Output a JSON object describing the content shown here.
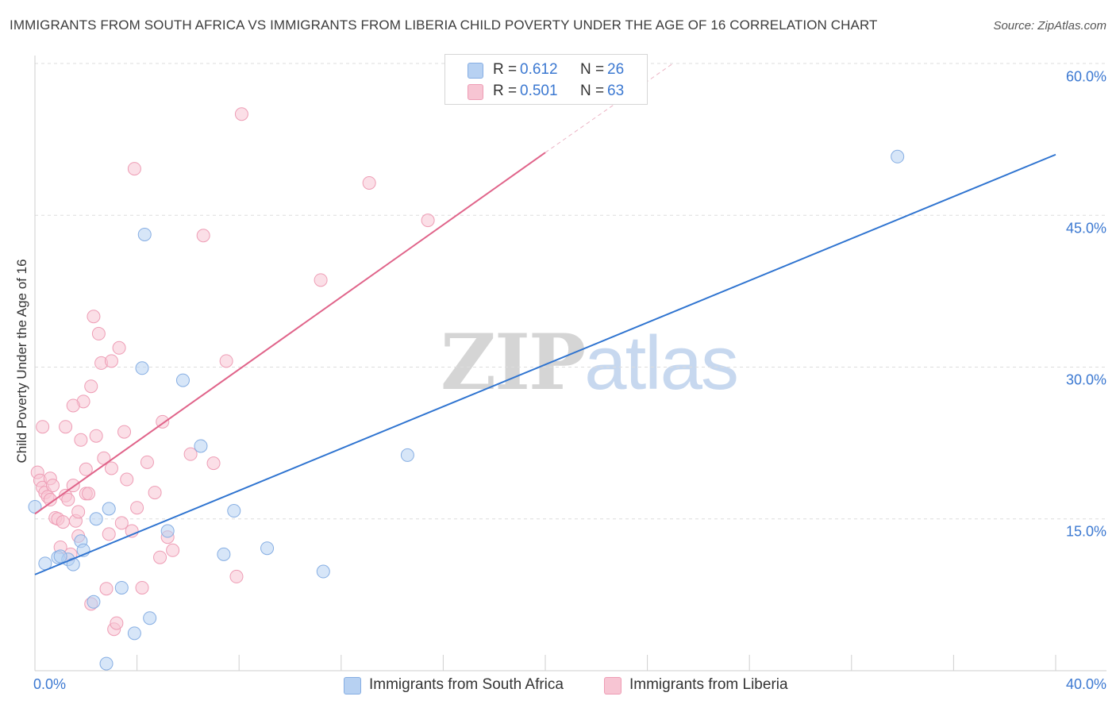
{
  "title": "IMMIGRANTS FROM SOUTH AFRICA VS IMMIGRANTS FROM LIBERIA CHILD POVERTY UNDER THE AGE OF 16 CORRELATION CHART",
  "source": "Source: ZipAtlas.com",
  "watermark": {
    "zip": "ZIP",
    "atlas": "atlas"
  },
  "legend": {
    "rows": [
      {
        "r_label": "R =",
        "r_value": "0.612",
        "n_label": "N =",
        "n_value": "26"
      },
      {
        "r_label": "R =",
        "r_value": "0.501",
        "n_label": "N =",
        "n_value": "63"
      }
    ]
  },
  "colors": {
    "south_africa_fill": "#b7d1f2",
    "south_africa_stroke": "#86aee3",
    "south_africa_line": "#2f74d0",
    "liberia_fill": "#f7c5d3",
    "liberia_stroke": "#ee9db5",
    "liberia_line": "#e0648a",
    "tick_text": "#3b78d1",
    "grid": "#dddddd"
  },
  "chart_data": {
    "type": "scatter",
    "title": "IMMIGRANTS FROM SOUTH AFRICA VS IMMIGRANTS FROM LIBERIA CHILD POVERTY UNDER THE AGE OF 16 CORRELATION CHART",
    "xlabel": "",
    "ylabel": "Child Poverty Under the Age of 16",
    "xlim": [
      0,
      40
    ],
    "ylim": [
      0,
      60
    ],
    "x_tick_labels": [
      "0.0%",
      "40.0%"
    ],
    "y_ticks": [
      15,
      30,
      45,
      60
    ],
    "y_tick_labels": [
      "15.0%",
      "30.0%",
      "45.0%",
      "60.0%"
    ],
    "grid": true,
    "legend_position": "top-center",
    "series": [
      {
        "name": "Immigrants from South Africa",
        "r": 0.612,
        "n": 26,
        "trend": {
          "x": [
            0,
            40
          ],
          "y": [
            9.5,
            51.0
          ]
        },
        "points": [
          [
            0.0,
            16.2
          ],
          [
            0.4,
            10.6
          ],
          [
            0.9,
            11.2
          ],
          [
            1.3,
            11.0
          ],
          [
            1.5,
            10.5
          ],
          [
            1.8,
            12.8
          ],
          [
            1.9,
            11.9
          ],
          [
            2.3,
            6.8
          ],
          [
            2.4,
            15.0
          ],
          [
            2.8,
            0.7
          ],
          [
            2.9,
            16.0
          ],
          [
            3.4,
            8.2
          ],
          [
            3.9,
            3.7
          ],
          [
            4.2,
            29.9
          ],
          [
            4.3,
            43.1
          ],
          [
            4.5,
            5.2
          ],
          [
            5.2,
            13.8
          ],
          [
            5.8,
            28.7
          ],
          [
            6.5,
            22.2
          ],
          [
            7.4,
            11.5
          ],
          [
            7.8,
            15.8
          ],
          [
            9.1,
            12.1
          ],
          [
            11.3,
            9.8
          ],
          [
            14.6,
            21.3
          ],
          [
            33.8,
            50.8
          ],
          [
            1.0,
            11.3
          ]
        ]
      },
      {
        "name": "Immigrants from Liberia",
        "r": 0.501,
        "n": 63,
        "trend": {
          "x": [
            0,
            20
          ],
          "y": [
            15.5,
            51.2
          ]
        },
        "trend_dashed": {
          "x": [
            20,
            25
          ],
          "y": [
            51.2,
            60.0
          ]
        },
        "points": [
          [
            0.1,
            19.6
          ],
          [
            0.2,
            18.8
          ],
          [
            0.3,
            18.1
          ],
          [
            0.4,
            17.6
          ],
          [
            0.5,
            17.2
          ],
          [
            0.6,
            19.0
          ],
          [
            0.7,
            18.3
          ],
          [
            0.8,
            15.1
          ],
          [
            0.9,
            15.0
          ],
          [
            1.0,
            12.2
          ],
          [
            1.1,
            14.7
          ],
          [
            1.2,
            17.3
          ],
          [
            1.3,
            16.9
          ],
          [
            1.4,
            11.5
          ],
          [
            1.5,
            18.3
          ],
          [
            1.6,
            14.8
          ],
          [
            1.7,
            15.7
          ],
          [
            1.8,
            22.8
          ],
          [
            1.9,
            26.6
          ],
          [
            2.0,
            17.5
          ],
          [
            2.1,
            17.5
          ],
          [
            2.2,
            6.6
          ],
          [
            2.3,
            35.0
          ],
          [
            2.4,
            23.2
          ],
          [
            2.5,
            33.3
          ],
          [
            2.6,
            30.4
          ],
          [
            2.7,
            21.0
          ],
          [
            2.8,
            8.1
          ],
          [
            2.9,
            13.5
          ],
          [
            3.0,
            20.0
          ],
          [
            3.1,
            4.1
          ],
          [
            3.2,
            4.7
          ],
          [
            3.3,
            31.9
          ],
          [
            3.4,
            14.6
          ],
          [
            3.5,
            23.6
          ],
          [
            3.6,
            18.9
          ],
          [
            3.8,
            13.8
          ],
          [
            3.9,
            49.6
          ],
          [
            4.0,
            16.1
          ],
          [
            4.2,
            8.2
          ],
          [
            4.4,
            20.6
          ],
          [
            4.7,
            17.6
          ],
          [
            4.9,
            11.2
          ],
          [
            5.0,
            24.6
          ],
          [
            5.2,
            13.2
          ],
          [
            5.4,
            11.9
          ],
          [
            6.1,
            21.4
          ],
          [
            6.6,
            43.0
          ],
          [
            7.0,
            20.5
          ],
          [
            7.5,
            30.6
          ],
          [
            7.9,
            9.3
          ],
          [
            8.1,
            55.0
          ],
          [
            11.2,
            38.6
          ],
          [
            13.1,
            48.2
          ],
          [
            15.4,
            44.5
          ],
          [
            0.3,
            24.1
          ],
          [
            1.2,
            24.1
          ],
          [
            1.5,
            26.2
          ],
          [
            2.2,
            28.1
          ],
          [
            3.0,
            30.6
          ],
          [
            0.6,
            16.9
          ],
          [
            1.7,
            13.3
          ],
          [
            2.0,
            19.9
          ]
        ]
      }
    ]
  },
  "axis": {
    "ylabel": "Child Poverty Under the Age of 16",
    "x_left": "0.0%",
    "x_right": "40.0%",
    "y_ticks": [
      "15.0%",
      "30.0%",
      "45.0%",
      "60.0%"
    ]
  },
  "bottom_legend": [
    "Immigrants from South Africa",
    "Immigrants from Liberia"
  ]
}
